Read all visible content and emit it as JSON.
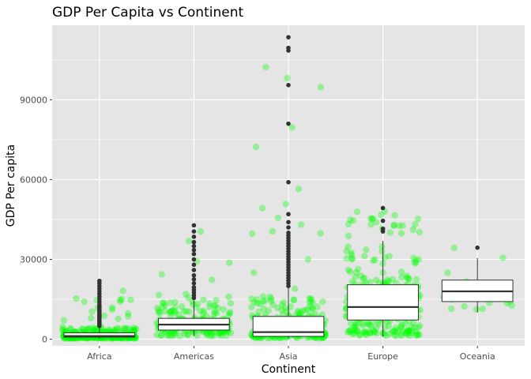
{
  "chart_data": {
    "type": "box",
    "title": "GDP Per Capita vs Continent",
    "xlabel": "Continent",
    "ylabel": "GDP Per capita",
    "categories": [
      "Africa",
      "Americas",
      "Asia",
      "Europe",
      "Oceania"
    ],
    "ylim": [
      -2500,
      118000
    ],
    "yticks": [
      0,
      30000,
      60000,
      90000
    ],
    "ytick_labels": [
      "0",
      "30000",
      "60000",
      "90000"
    ],
    "grid": true,
    "legend": "none",
    "colors": {
      "panel": "#E5E5E5",
      "grid": "#FFFFFF",
      "box_fill": "#FFFFFF",
      "box_stroke": "#333333",
      "outlier": "#333333",
      "jitter": "#00FF00"
    },
    "boxes": [
      {
        "category": "Africa",
        "min": 241,
        "q1": 761,
        "median": 1192,
        "q3": 2377,
        "whisker_high": 4800,
        "outliers": [
          5000,
          5500,
          6000,
          6500,
          7000,
          7500,
          8000,
          8500,
          9000,
          9500,
          10000,
          10500,
          11000,
          11500,
          12000,
          12500,
          13000,
          14000,
          15000,
          16000,
          17000,
          18000,
          19000,
          20000,
          21000,
          21900
        ]
      },
      {
        "category": "Americas",
        "min": 1202,
        "q1": 3428,
        "median": 5466,
        "q3": 7830,
        "whisker_high": 14500,
        "outliers": [
          15500,
          16500,
          17500,
          18500,
          19500,
          21000,
          22500,
          24000,
          26000,
          28000,
          30000,
          32000,
          33500,
          35000,
          36500,
          38500,
          40500,
          42800
        ]
      },
      {
        "category": "Asia",
        "min": 331,
        "q1": 1057,
        "median": 2647,
        "q3": 8549,
        "whisker_high": 19500,
        "outliers": [
          20000,
          21000,
          22000,
          23000,
          24000,
          25000,
          26000,
          27000,
          28000,
          29000,
          30000,
          31000,
          32000,
          33000,
          34000,
          35000,
          36000,
          37000,
          38000,
          39000,
          40000,
          42000,
          44000,
          47000,
          59000,
          81000,
          95500,
          108500,
          109500,
          113500
        ]
      },
      {
        "category": "Europe",
        "min": 974,
        "q1": 7213,
        "median": 12082,
        "q3": 20461,
        "whisker_high": 37000,
        "outliers": [
          40500,
          41500,
          44500,
          49300
        ]
      },
      {
        "category": "Oceania",
        "min": 10040,
        "q1": 14142,
        "median": 17983,
        "q3": 22214,
        "whisker_high": 30500,
        "outliers": [
          34400
        ]
      }
    ],
    "points": {
      "Africa": {
        "n": 300,
        "dist": "skew",
        "min": 250,
        "max": 22000,
        "median": 1200,
        "q3": 2400
      },
      "Americas": {
        "n": 220,
        "dist": "skew",
        "min": 1200,
        "max": 43000,
        "median": 5500,
        "q3": 7800
      },
      "Asia": {
        "n": 260,
        "dist": "skew",
        "min": 330,
        "max": 113500,
        "median": 2600,
        "q3": 8500
      },
      "Europe": {
        "n": 280,
        "dist": "spread",
        "min": 970,
        "max": 49300,
        "median": 12000,
        "q3": 20500
      },
      "Oceania": {
        "n": 24,
        "dist": "spread",
        "min": 10000,
        "max": 34400,
        "median": 18000,
        "q3": 22200
      }
    }
  }
}
